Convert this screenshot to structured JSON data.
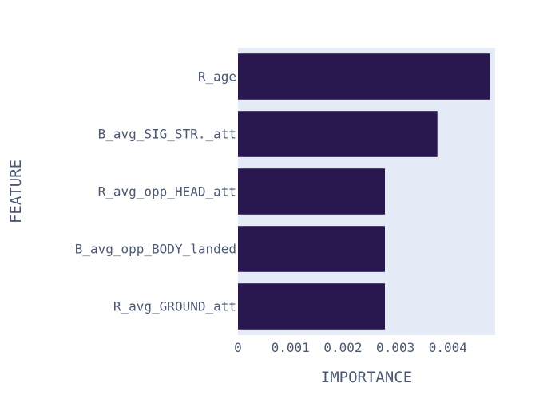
{
  "chart_data": {
    "type": "bar",
    "orientation": "horizontal",
    "xlabel": "IMPORTANCE",
    "ylabel": "FEATURE",
    "categories": [
      "R_age",
      "B_avg_SIG_STR._att",
      "R_avg_opp_HEAD_att",
      "B_avg_opp_BODY_landed",
      "R_avg_GROUND_att"
    ],
    "values": [
      0.0048,
      0.0038,
      0.0028,
      0.0028,
      0.0028
    ],
    "xlim": [
      0,
      0.0049
    ],
    "xticks": [
      "0",
      "0.001",
      "0.002",
      "0.003",
      "0.004"
    ],
    "xtick_values": [
      0,
      0.001,
      0.002,
      0.003,
      0.004
    ],
    "grid": false,
    "bar_color": "#28184f",
    "plot_background": "#e5ebf6"
  }
}
